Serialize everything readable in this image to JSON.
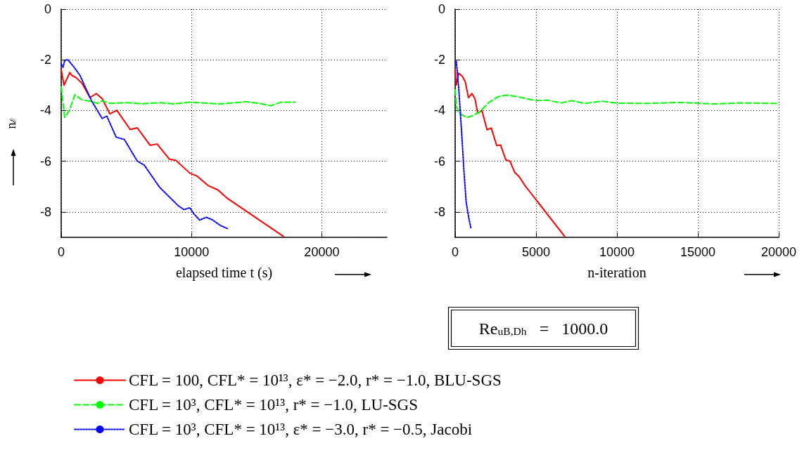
{
  "chart_data": [
    {
      "type": "line",
      "xlabel": "elapsed time t (s)",
      "ylabel": "n$_{ℰ}$",
      "xlim": [
        0,
        25000
      ],
      "xticks": [
        0,
        10000,
        20000
      ],
      "ylim": [
        -9,
        0
      ],
      "yticks": [
        0,
        -2,
        -4,
        -6,
        -8
      ],
      "grid": true,
      "legend": "bottom",
      "marker": "none",
      "series": [
        {
          "name": "CFL = 100, CFL* = 10¹³, ε* = −2.0, r* = −1.0, BLU-SGS",
          "color": "#ff0000",
          "line_style": "solid",
          "x": [
            0,
            215,
            664,
            808,
            1167,
            1616,
            2209,
            2693,
            3142,
            3734,
            4273,
            5296,
            5835,
            6822,
            7361,
            8312,
            8797,
            9874,
            10413,
            11311,
            12029,
            12747,
            17055
          ],
          "values": [
            -2.39,
            -3.0,
            -2.5,
            -2.61,
            -2.71,
            -2.94,
            -3.49,
            -3.33,
            -3.53,
            -4.13,
            -3.99,
            -4.75,
            -4.68,
            -5.37,
            -5.32,
            -5.92,
            -5.96,
            -6.47,
            -6.58,
            -6.97,
            -7.13,
            -7.46,
            -8.96
          ]
        },
        {
          "name": "CFL = 10³, CFL* = 10¹³, r* = −1.0, LU-SGS",
          "color": "#00ff00",
          "line_style": "dashed",
          "x": [
            0,
            269,
            628,
            1041,
            1616,
            2334,
            2783,
            3142,
            3770,
            5027,
            6284,
            7540,
            8617,
            9874,
            12208,
            14183,
            15260,
            16067,
            16875,
            17952
          ],
          "values": [
            -3.07,
            -4.27,
            -3.99,
            -3.38,
            -3.58,
            -3.64,
            -3.72,
            -3.62,
            -3.72,
            -3.69,
            -3.73,
            -3.69,
            -3.74,
            -3.67,
            -3.74,
            -3.65,
            -3.72,
            -3.81,
            -3.67,
            -3.67
          ]
        },
        {
          "name": "CFL = 10³, CFL* = 10¹³, ε* = −3.0, r* = −0.5, Jacobi",
          "color": "#0000ff",
          "line_style": "dotted",
          "x": [
            0,
            144,
            269,
            502,
            987,
            1436,
            2334,
            3142,
            3501,
            4219,
            4848,
            5835,
            6374,
            7540,
            8977,
            9426,
            9874,
            10144,
            10628,
            11131,
            11580,
            12208,
            12837
          ],
          "values": [
            -2.17,
            -2.29,
            -2.02,
            -1.99,
            -2.29,
            -2.61,
            -3.62,
            -4.31,
            -4.22,
            -5.05,
            -5.14,
            -5.99,
            -6.15,
            -7.02,
            -7.75,
            -7.91,
            -7.83,
            -8.05,
            -8.32,
            -8.21,
            -8.3,
            -8.53,
            -8.67
          ]
        }
      ]
    },
    {
      "type": "line",
      "xlabel": "n-iteration",
      "xlim": [
        0,
        20000
      ],
      "xticks": [
        0,
        5000,
        10000,
        15000,
        20000
      ],
      "ylim": [
        -9,
        0
      ],
      "yticks": [
        0,
        -2,
        -4,
        -6,
        -8
      ],
      "grid": true,
      "marker": "none",
      "annotations": [
        "Re$_{uB,Dh}$   =   1000.0"
      ],
      "series": [
        {
          "color": "#ff0000",
          "line_style": "solid",
          "x": [
            0,
            72,
            216,
            432,
            620,
            821,
            1037,
            1225,
            1398,
            1657,
            1974,
            2234,
            2565,
            2810,
            3127,
            3386,
            3674,
            3963,
            4323,
            4611,
            6773
          ],
          "values": [
            -2.39,
            -2.99,
            -2.53,
            -2.64,
            -2.85,
            -3.49,
            -3.33,
            -3.54,
            -4.11,
            -4.0,
            -4.76,
            -4.69,
            -5.38,
            -5.36,
            -5.94,
            -6.0,
            -6.43,
            -6.61,
            -6.97,
            -7.2,
            -8.97
          ]
        },
        {
          "color": "#00ff00",
          "line_style": "dashed",
          "x": [
            0,
            72,
            216,
            720,
            1081,
            1513,
            2090,
            2666,
            3170,
            3818,
            5000,
            5692,
            6557,
            7205,
            7997,
            9078,
            10014,
            11744,
            13905,
            15922,
            17651,
            19957
          ],
          "values": [
            -3.17,
            -3.82,
            -4.09,
            -4.28,
            -4.2,
            -4.05,
            -3.68,
            -3.45,
            -3.39,
            -3.45,
            -3.61,
            -3.59,
            -3.7,
            -3.61,
            -3.72,
            -3.63,
            -3.71,
            -3.72,
            -3.68,
            -3.74,
            -3.7,
            -3.72
          ]
        },
        {
          "color": "#0000ff",
          "line_style": "dotted",
          "x": [
            72,
            115,
            216,
            331,
            432,
            533,
            677,
            764,
            864,
            980
          ],
          "values": [
            -2.06,
            -2.35,
            -3.08,
            -4.18,
            -5.19,
            -6.29,
            -7.58,
            -7.94,
            -8.31,
            -8.65
          ]
        }
      ]
    }
  ]
}
